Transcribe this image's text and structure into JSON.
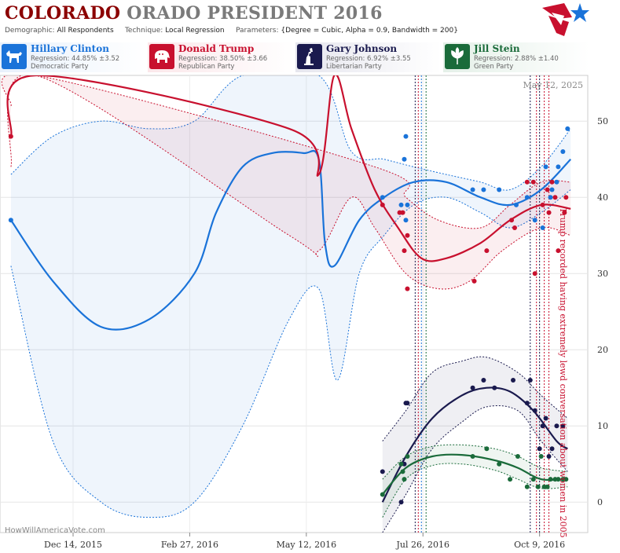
{
  "header": {
    "title_main": "COLORADO",
    "title_rest": "ORADO PRESIDENT 2016",
    "demographic_label": "Demographic:",
    "demographic_value": "All Respondents",
    "technique_label": "Technique:",
    "technique_value": "Local Regression",
    "parameters_label": "Parameters:",
    "parameters_value": "{Degree = Cubic, Alpha = 0.9, Bandwidth = 200}"
  },
  "candidates": [
    {
      "name": "Hillary Clinton",
      "regression": "Regression: 44.85% ±3.52",
      "party": "Democratic Party",
      "color": "#1a73d9",
      "icon": "donkey-icon"
    },
    {
      "name": "Donald Trump",
      "regression": "Regression: 38.50% ±3.66",
      "party": "Republican Party",
      "color": "#c8102e",
      "icon": "elephant-icon"
    },
    {
      "name": "Gary Johnson",
      "regression": "Regression: 6.92% ±3.55",
      "party": "Libertarian Party",
      "color": "#1a1a4e",
      "icon": "statue-of-liberty-icon"
    },
    {
      "name": "Jill Stein",
      "regression": "Regression: 2.88% ±1.40",
      "party": "Green Party",
      "color": "#1a6b3a",
      "icon": "leaf-icon"
    }
  ],
  "chart_data": {
    "type": "scatter",
    "date_label": "May 12, 2025",
    "watermark": "HowWillAmericaVote.com",
    "annotation": "Trump recorded having extremely lewd conversation about women in 2005",
    "x_tick_labels": [
      "Dec 14, 2015",
      "Feb 27, 2016",
      "May 12, 2016",
      "Jul 26, 2016",
      "Oct 9, 2016"
    ],
    "x_ticks": [
      "2015-12-14",
      "2016-02-27",
      "2016-05-12",
      "2016-07-26",
      "2016-10-09"
    ],
    "xlim": [
      "2015-10-28",
      "2016-11-09"
    ],
    "ylim": [
      -4,
      56
    ],
    "y_ticks": [
      0,
      10,
      20,
      30,
      40,
      50
    ],
    "grid": true,
    "vertical_markers": [
      {
        "date": "2016-07-21",
        "color": "#1a1a4e"
      },
      {
        "date": "2016-07-23",
        "color": "#c8102e"
      },
      {
        "date": "2016-07-25",
        "color": "#1a73d9"
      },
      {
        "date": "2016-07-28",
        "color": "#1a6b3a"
      },
      {
        "date": "2016-10-03",
        "color": "#1a1a4e"
      },
      {
        "date": "2016-10-07",
        "color": "#c8102e"
      },
      {
        "date": "2016-10-09",
        "color": "#1a1a4e"
      },
      {
        "date": "2016-10-12",
        "color": "#c8102e"
      },
      {
        "date": "2016-10-15",
        "color": "#c8102e"
      }
    ],
    "series": [
      {
        "name": "Hillary Clinton",
        "color": "#1a73d9",
        "points": [
          [
            "2015-11-04",
            37
          ],
          [
            "2016-06-30",
            40
          ],
          [
            "2016-07-12",
            39
          ],
          [
            "2016-07-14",
            45
          ],
          [
            "2016-07-15",
            48
          ],
          [
            "2016-07-15",
            37
          ],
          [
            "2016-07-16",
            39
          ],
          [
            "2016-08-27",
            41
          ],
          [
            "2016-09-03",
            41
          ],
          [
            "2016-09-13",
            41
          ],
          [
            "2016-09-24",
            39
          ],
          [
            "2016-10-01",
            40
          ],
          [
            "2016-10-06",
            37
          ],
          [
            "2016-10-11",
            36
          ],
          [
            "2016-10-13",
            44
          ],
          [
            "2016-10-16",
            40
          ],
          [
            "2016-10-17",
            41
          ],
          [
            "2016-10-20",
            42
          ],
          [
            "2016-10-21",
            44
          ],
          [
            "2016-10-24",
            46
          ],
          [
            "2016-10-27",
            49
          ]
        ],
        "line": [
          [
            "2015-11-04",
            37
          ],
          [
            "2015-12-01",
            29
          ],
          [
            "2016-01-01",
            23
          ],
          [
            "2016-02-01",
            24
          ],
          [
            "2016-03-01",
            30
          ],
          [
            "2016-03-15",
            38
          ],
          [
            "2016-04-01",
            44
          ],
          [
            "2016-04-20",
            45.8
          ],
          [
            "2016-05-10",
            45.8
          ],
          [
            "2016-05-20",
            45
          ],
          [
            "2016-05-24",
            34
          ],
          [
            "2016-05-30",
            31
          ],
          [
            "2016-06-15",
            37
          ],
          [
            "2016-07-01",
            40
          ],
          [
            "2016-07-20",
            42
          ],
          [
            "2016-08-10",
            42
          ],
          [
            "2016-09-01",
            40
          ],
          [
            "2016-09-20",
            39
          ],
          [
            "2016-10-10",
            41
          ],
          [
            "2016-10-29",
            45
          ]
        ],
        "upper": [
          [
            "2015-11-04",
            43
          ],
          [
            "2015-12-01",
            48
          ],
          [
            "2016-01-01",
            50
          ],
          [
            "2016-02-01",
            49
          ],
          [
            "2016-03-01",
            50
          ],
          [
            "2016-04-01",
            56
          ],
          [
            "2016-05-20",
            56
          ],
          [
            "2016-06-10",
            46
          ],
          [
            "2016-07-01",
            45
          ],
          [
            "2016-07-20",
            44
          ],
          [
            "2016-08-10",
            43
          ],
          [
            "2016-09-01",
            42
          ],
          [
            "2016-09-20",
            41
          ],
          [
            "2016-10-10",
            44
          ],
          [
            "2016-10-29",
            49
          ]
        ],
        "lower": [
          [
            "2015-11-04",
            31
          ],
          [
            "2015-12-01",
            8
          ],
          [
            "2016-01-01",
            0
          ],
          [
            "2016-02-01",
            -2
          ],
          [
            "2016-03-01",
            0
          ],
          [
            "2016-04-01",
            10
          ],
          [
            "2016-05-01",
            24
          ],
          [
            "2016-05-20",
            28
          ],
          [
            "2016-06-01",
            16
          ],
          [
            "2016-06-15",
            30
          ],
          [
            "2016-07-01",
            35
          ],
          [
            "2016-07-20",
            39
          ],
          [
            "2016-08-10",
            40
          ],
          [
            "2016-09-01",
            38
          ],
          [
            "2016-09-20",
            36
          ],
          [
            "2016-10-10",
            38
          ],
          [
            "2016-10-29",
            41
          ]
        ]
      },
      {
        "name": "Donald Trump",
        "color": "#c8102e",
        "points": [
          [
            "2015-11-04",
            48
          ],
          [
            "2016-06-30",
            39
          ],
          [
            "2016-07-11",
            38
          ],
          [
            "2016-07-13",
            38
          ],
          [
            "2016-07-16",
            35
          ],
          [
            "2016-07-14",
            33
          ],
          [
            "2016-07-16",
            28
          ],
          [
            "2016-08-28",
            29
          ],
          [
            "2016-09-05",
            33
          ],
          [
            "2016-09-21",
            37
          ],
          [
            "2016-09-23",
            36
          ],
          [
            "2016-10-01",
            42
          ],
          [
            "2016-10-05",
            42
          ],
          [
            "2016-10-06",
            30
          ],
          [
            "2016-10-11",
            39
          ],
          [
            "2016-10-14",
            41
          ],
          [
            "2016-10-15",
            38
          ],
          [
            "2016-10-17",
            42
          ],
          [
            "2016-10-19",
            40
          ],
          [
            "2016-10-21",
            33
          ],
          [
            "2016-10-25",
            38
          ],
          [
            "2016-10-26",
            40
          ]
        ],
        "line": [
          [
            "2015-11-04",
            48
          ],
          [
            "2015-11-20",
            56
          ],
          [
            "2016-05-01",
            49
          ],
          [
            "2016-05-20",
            43
          ],
          [
            "2016-05-30",
            56
          ],
          [
            "2016-06-10",
            49
          ],
          [
            "2016-06-25",
            41
          ],
          [
            "2016-07-10",
            36
          ],
          [
            "2016-07-25",
            32
          ],
          [
            "2016-08-10",
            32
          ],
          [
            "2016-09-01",
            34
          ],
          [
            "2016-09-20",
            37
          ],
          [
            "2016-10-10",
            39
          ],
          [
            "2016-10-29",
            38.5
          ]
        ],
        "upper": [
          [
            "2015-11-04",
            52
          ],
          [
            "2015-11-20",
            56
          ],
          [
            "2016-06-25",
            44
          ],
          [
            "2016-07-15",
            40
          ],
          [
            "2016-08-05",
            37
          ],
          [
            "2016-09-01",
            36
          ],
          [
            "2016-09-20",
            39
          ],
          [
            "2016-10-10",
            42
          ],
          [
            "2016-10-29",
            42
          ]
        ],
        "lower": [
          [
            "2015-11-04",
            44
          ],
          [
            "2015-11-20",
            56
          ],
          [
            "2016-05-01",
            35
          ],
          [
            "2016-05-20",
            33
          ],
          [
            "2016-06-10",
            40
          ],
          [
            "2016-06-25",
            36
          ],
          [
            "2016-07-15",
            30
          ],
          [
            "2016-08-05",
            28
          ],
          [
            "2016-08-25",
            29
          ],
          [
            "2016-09-15",
            33
          ],
          [
            "2016-10-10",
            36
          ],
          [
            "2016-10-29",
            35
          ]
        ]
      },
      {
        "name": "Gary Johnson",
        "color": "#1a1a4e",
        "points": [
          [
            "2016-06-30",
            4
          ],
          [
            "2016-07-12",
            0
          ],
          [
            "2016-07-14",
            5
          ],
          [
            "2016-07-15",
            13
          ],
          [
            "2016-07-16",
            13
          ],
          [
            "2016-08-27",
            15
          ],
          [
            "2016-09-03",
            16
          ],
          [
            "2016-09-10",
            15
          ],
          [
            "2016-09-22",
            16
          ],
          [
            "2016-10-01",
            13
          ],
          [
            "2016-10-03",
            16
          ],
          [
            "2016-10-06",
            12
          ],
          [
            "2016-10-09",
            7
          ],
          [
            "2016-10-11",
            10
          ],
          [
            "2016-10-13",
            11
          ],
          [
            "2016-10-15",
            6
          ],
          [
            "2016-10-17",
            7
          ],
          [
            "2016-10-20",
            10
          ],
          [
            "2016-10-24",
            10
          ]
        ],
        "line": [
          [
            "2016-06-30",
            0
          ],
          [
            "2016-07-15",
            6
          ],
          [
            "2016-08-01",
            11
          ],
          [
            "2016-08-20",
            14
          ],
          [
            "2016-09-05",
            15
          ],
          [
            "2016-09-20",
            14.5
          ],
          [
            "2016-10-05",
            12
          ],
          [
            "2016-10-20",
            8
          ],
          [
            "2016-10-27",
            7
          ]
        ],
        "upper": [
          [
            "2016-06-30",
            8
          ],
          [
            "2016-07-15",
            12
          ],
          [
            "2016-08-01",
            17
          ],
          [
            "2016-08-20",
            18.5
          ],
          [
            "2016-09-05",
            19
          ],
          [
            "2016-09-25",
            17
          ],
          [
            "2016-10-10",
            14
          ],
          [
            "2016-10-27",
            11
          ]
        ],
        "lower": [
          [
            "2016-06-30",
            -4
          ],
          [
            "2016-07-15",
            1
          ],
          [
            "2016-08-01",
            7
          ],
          [
            "2016-08-20",
            10.5
          ],
          [
            "2016-09-05",
            12.5
          ],
          [
            "2016-09-25",
            12
          ],
          [
            "2016-10-10",
            8
          ],
          [
            "2016-10-27",
            4
          ]
        ]
      },
      {
        "name": "Jill Stein",
        "color": "#1a6b3a",
        "points": [
          [
            "2016-06-30",
            1
          ],
          [
            "2016-07-12",
            5
          ],
          [
            "2016-07-13",
            4
          ],
          [
            "2016-07-14",
            3
          ],
          [
            "2016-07-16",
            6
          ],
          [
            "2016-08-27",
            6
          ],
          [
            "2016-09-05",
            7
          ],
          [
            "2016-09-13",
            5
          ],
          [
            "2016-09-20",
            3
          ],
          [
            "2016-09-25",
            6
          ],
          [
            "2016-10-01",
            2
          ],
          [
            "2016-10-05",
            3
          ],
          [
            "2016-10-08",
            2
          ],
          [
            "2016-10-10",
            6
          ],
          [
            "2016-10-12",
            2
          ],
          [
            "2016-10-14",
            2
          ],
          [
            "2016-10-16",
            3
          ],
          [
            "2016-10-19",
            3
          ],
          [
            "2016-10-21",
            3
          ],
          [
            "2016-10-24",
            3
          ],
          [
            "2016-10-26",
            3
          ]
        ],
        "line": [
          [
            "2016-06-30",
            1
          ],
          [
            "2016-07-15",
            4.5
          ],
          [
            "2016-08-01",
            6
          ],
          [
            "2016-08-20",
            6.2
          ],
          [
            "2016-09-10",
            5.5
          ],
          [
            "2016-09-25",
            4.5
          ],
          [
            "2016-10-10",
            3
          ],
          [
            "2016-10-27",
            3
          ]
        ],
        "upper": [
          [
            "2016-06-30",
            3
          ],
          [
            "2016-07-15",
            6
          ],
          [
            "2016-08-01",
            7.3
          ],
          [
            "2016-08-20",
            7.5
          ],
          [
            "2016-09-10",
            7
          ],
          [
            "2016-09-25",
            6
          ],
          [
            "2016-10-10",
            4.5
          ],
          [
            "2016-10-27",
            4
          ]
        ],
        "lower": [
          [
            "2016-06-30",
            -2
          ],
          [
            "2016-07-15",
            3
          ],
          [
            "2016-08-01",
            4.8
          ],
          [
            "2016-08-20",
            5
          ],
          [
            "2016-09-10",
            4.2
          ],
          [
            "2016-09-25",
            3
          ],
          [
            "2016-10-10",
            1.8
          ],
          [
            "2016-10-27",
            2
          ]
        ]
      }
    ]
  }
}
